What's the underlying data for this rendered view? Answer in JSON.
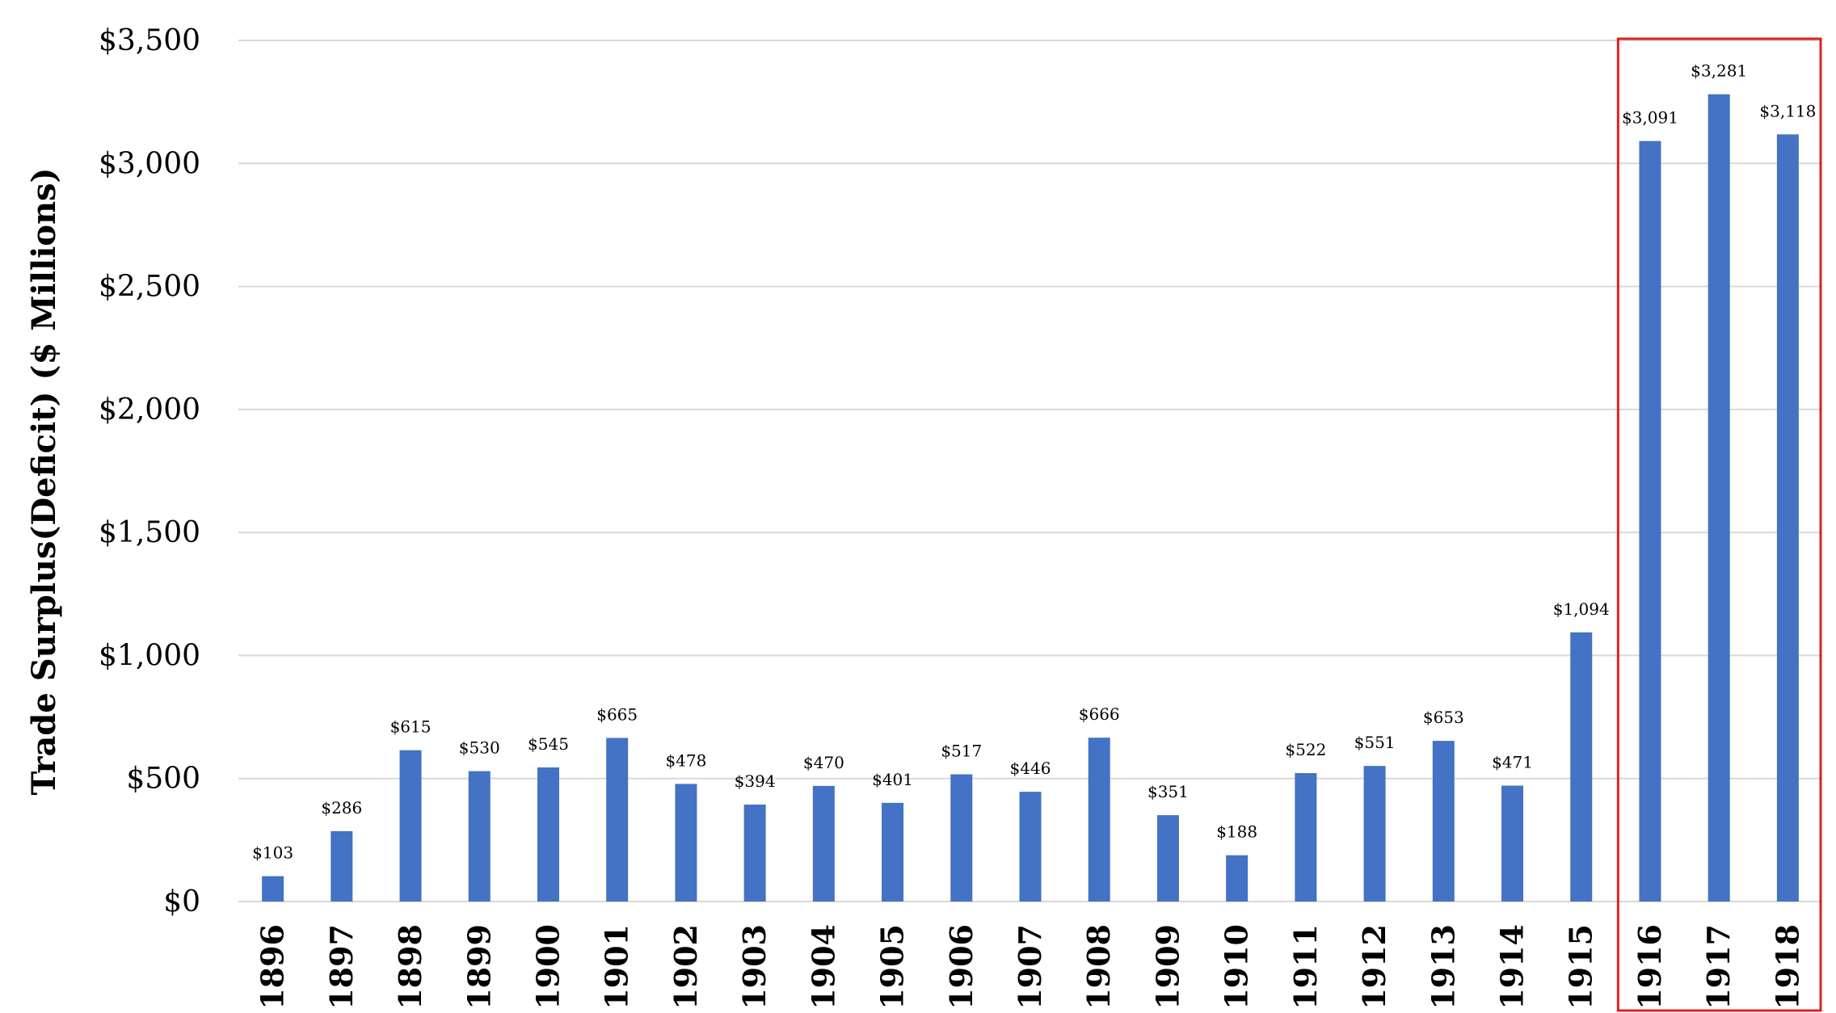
{
  "chart_data": {
    "type": "bar",
    "title": "",
    "xlabel": "",
    "ylabel": "Trade Surplus(Deficit) ($ Millions)",
    "categories": [
      "1896",
      "1897",
      "1898",
      "1899",
      "1900",
      "1901",
      "1902",
      "1903",
      "1904",
      "1905",
      "1906",
      "1907",
      "1908",
      "1909",
      "1910",
      "1911",
      "1912",
      "1913",
      "1914",
      "1915",
      "1916",
      "1917",
      "1918"
    ],
    "values": [
      103,
      286,
      615,
      530,
      545,
      665,
      478,
      394,
      470,
      401,
      517,
      446,
      666,
      351,
      188,
      522,
      551,
      653,
      471,
      1094,
      3091,
      3281,
      3118
    ],
    "data_labels": [
      "$103",
      "$286",
      "$615",
      "$530",
      "$545",
      "$665",
      "$478",
      "$394",
      "$470",
      "$401",
      "$517",
      "$446",
      "$666",
      "$351",
      "$188",
      "$522",
      "$551",
      "$653",
      "$471",
      "$1,094",
      "$3,091",
      "$3,281",
      "$3,118"
    ],
    "yticks": [
      0,
      500,
      1000,
      1500,
      2000,
      2500,
      3000,
      3500
    ],
    "ytick_labels": [
      "$0",
      "$500",
      "$1,000",
      "$1,500",
      "$2,000",
      "$2,500",
      "$3,000",
      "$3,500"
    ],
    "ylim": [
      0,
      3500
    ],
    "grid": true,
    "legend": "none",
    "bar_color": "#4472C4",
    "grid_color": "#D9D9D9",
    "highlight": {
      "categories": [
        "1916",
        "1917",
        "1918"
      ],
      "color": "#E02020"
    }
  }
}
